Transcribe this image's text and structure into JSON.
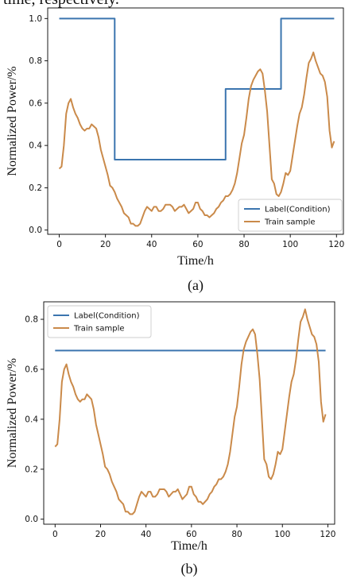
{
  "top_text": "time, respectively.",
  "chart_data": [
    {
      "type": "line",
      "panel_label": "(a)",
      "xlabel": "Time/h",
      "ylabel": "Normalized Power/%",
      "xlim": [
        -5,
        123
      ],
      "ylim": [
        -0.02,
        1.05
      ],
      "xticks": [
        0,
        20,
        40,
        60,
        80,
        100,
        120
      ],
      "yticks": [
        0.0,
        0.2,
        0.4,
        0.6,
        0.8,
        1.0
      ],
      "grid": false,
      "legend_position": "lower-right",
      "series": [
        {
          "name": "Label(Condition)",
          "color": "#3b75af",
          "x": [
            0,
            24,
            24,
            72,
            72,
            96,
            96,
            119
          ],
          "y": [
            1.0,
            1.0,
            0.333,
            0.333,
            0.667,
            0.667,
            1.0,
            1.0
          ]
        },
        {
          "name": "Train sample",
          "color": "#ca8a4a",
          "x": [
            0,
            1,
            2,
            3,
            4,
            5,
            6,
            7,
            8,
            9,
            10,
            11,
            12,
            13,
            14,
            15,
            16,
            17,
            18,
            19,
            20,
            21,
            22,
            23,
            24,
            25,
            26,
            27,
            28,
            29,
            30,
            31,
            32,
            33,
            34,
            35,
            36,
            37,
            38,
            39,
            40,
            41,
            42,
            43,
            44,
            45,
            46,
            47,
            48,
            49,
            50,
            51,
            52,
            53,
            54,
            55,
            56,
            57,
            58,
            59,
            60,
            61,
            62,
            63,
            64,
            65,
            66,
            67,
            68,
            69,
            70,
            71,
            72,
            73,
            74,
            75,
            76,
            77,
            78,
            79,
            80,
            81,
            82,
            83,
            84,
            85,
            86,
            87,
            88,
            89,
            90,
            91,
            92,
            93,
            94,
            95,
            96,
            97,
            98,
            99,
            100,
            101,
            102,
            103,
            104,
            105,
            106,
            107,
            108,
            109,
            110,
            111,
            112,
            113,
            114,
            115,
            116,
            117,
            118,
            119
          ],
          "y": [
            0.29,
            0.3,
            0.4,
            0.55,
            0.6,
            0.62,
            0.58,
            0.55,
            0.53,
            0.5,
            0.48,
            0.47,
            0.48,
            0.48,
            0.5,
            0.49,
            0.48,
            0.44,
            0.38,
            0.34,
            0.3,
            0.26,
            0.21,
            0.2,
            0.18,
            0.15,
            0.13,
            0.11,
            0.08,
            0.07,
            0.06,
            0.03,
            0.03,
            0.02,
            0.02,
            0.03,
            0.06,
            0.09,
            0.11,
            0.1,
            0.09,
            0.11,
            0.11,
            0.09,
            0.09,
            0.1,
            0.12,
            0.12,
            0.12,
            0.11,
            0.09,
            0.1,
            0.11,
            0.11,
            0.12,
            0.1,
            0.08,
            0.09,
            0.1,
            0.13,
            0.13,
            0.1,
            0.09,
            0.07,
            0.07,
            0.06,
            0.07,
            0.08,
            0.1,
            0.11,
            0.13,
            0.14,
            0.16,
            0.16,
            0.17,
            0.19,
            0.22,
            0.27,
            0.34,
            0.41,
            0.45,
            0.53,
            0.62,
            0.68,
            0.71,
            0.73,
            0.75,
            0.76,
            0.74,
            0.66,
            0.56,
            0.4,
            0.24,
            0.22,
            0.17,
            0.16,
            0.18,
            0.22,
            0.27,
            0.26,
            0.28,
            0.35,
            0.42,
            0.49,
            0.55,
            0.58,
            0.64,
            0.72,
            0.79,
            0.81,
            0.84,
            0.8,
            0.77,
            0.74,
            0.73,
            0.7,
            0.63,
            0.47,
            0.39,
            0.42
          ]
        }
      ]
    },
    {
      "type": "line",
      "panel_label": "(b)",
      "xlabel": "Time/h",
      "ylabel": "Normalized Power/%",
      "xlim": [
        -5,
        123
      ],
      "ylim": [
        -0.02,
        0.87
      ],
      "xticks": [
        0,
        20,
        40,
        60,
        80,
        100,
        120
      ],
      "yticks": [
        0.0,
        0.2,
        0.4,
        0.6,
        0.8
      ],
      "grid": false,
      "legend_position": "upper-left",
      "series": [
        {
          "name": "Label(Condition)",
          "color": "#3b75af",
          "x": [
            0,
            119
          ],
          "y": [
            0.675,
            0.675
          ]
        },
        {
          "name": "Train sample",
          "color": "#ca8a4a",
          "x": [
            0,
            1,
            2,
            3,
            4,
            5,
            6,
            7,
            8,
            9,
            10,
            11,
            12,
            13,
            14,
            15,
            16,
            17,
            18,
            19,
            20,
            21,
            22,
            23,
            24,
            25,
            26,
            27,
            28,
            29,
            30,
            31,
            32,
            33,
            34,
            35,
            36,
            37,
            38,
            39,
            40,
            41,
            42,
            43,
            44,
            45,
            46,
            47,
            48,
            49,
            50,
            51,
            52,
            53,
            54,
            55,
            56,
            57,
            58,
            59,
            60,
            61,
            62,
            63,
            64,
            65,
            66,
            67,
            68,
            69,
            70,
            71,
            72,
            73,
            74,
            75,
            76,
            77,
            78,
            79,
            80,
            81,
            82,
            83,
            84,
            85,
            86,
            87,
            88,
            89,
            90,
            91,
            92,
            93,
            94,
            95,
            96,
            97,
            98,
            99,
            100,
            101,
            102,
            103,
            104,
            105,
            106,
            107,
            108,
            109,
            110,
            111,
            112,
            113,
            114,
            115,
            116,
            117,
            118,
            119
          ],
          "y": [
            0.29,
            0.3,
            0.4,
            0.55,
            0.6,
            0.62,
            0.58,
            0.55,
            0.53,
            0.5,
            0.48,
            0.47,
            0.48,
            0.48,
            0.5,
            0.49,
            0.48,
            0.44,
            0.38,
            0.34,
            0.3,
            0.26,
            0.21,
            0.2,
            0.18,
            0.15,
            0.13,
            0.11,
            0.08,
            0.07,
            0.06,
            0.03,
            0.03,
            0.02,
            0.02,
            0.03,
            0.06,
            0.09,
            0.11,
            0.1,
            0.09,
            0.11,
            0.11,
            0.09,
            0.09,
            0.1,
            0.12,
            0.12,
            0.12,
            0.11,
            0.09,
            0.1,
            0.11,
            0.11,
            0.12,
            0.1,
            0.08,
            0.09,
            0.1,
            0.13,
            0.13,
            0.1,
            0.09,
            0.07,
            0.07,
            0.06,
            0.07,
            0.08,
            0.1,
            0.11,
            0.13,
            0.14,
            0.16,
            0.16,
            0.17,
            0.19,
            0.22,
            0.27,
            0.34,
            0.41,
            0.45,
            0.53,
            0.62,
            0.68,
            0.71,
            0.73,
            0.75,
            0.76,
            0.74,
            0.66,
            0.56,
            0.4,
            0.24,
            0.22,
            0.17,
            0.16,
            0.18,
            0.22,
            0.27,
            0.26,
            0.28,
            0.35,
            0.42,
            0.49,
            0.55,
            0.58,
            0.64,
            0.72,
            0.79,
            0.81,
            0.84,
            0.8,
            0.77,
            0.74,
            0.73,
            0.7,
            0.63,
            0.47,
            0.39,
            0.42
          ]
        }
      ]
    }
  ]
}
